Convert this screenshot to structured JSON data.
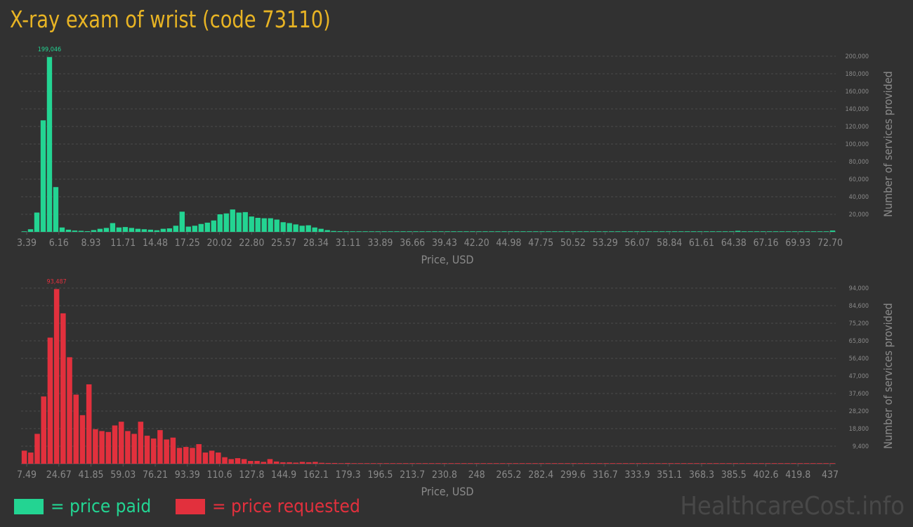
{
  "title": "X-ray exam of wrist (code 73110)",
  "watermark": "HealthcareCost.info",
  "colors": {
    "background": "#313131",
    "title": "#e8b424",
    "paid": "#23d492",
    "requested": "#e2303d",
    "axis_text": "#8a8a8a",
    "grid": "#4a4a4a"
  },
  "legend": {
    "paid": "= price paid",
    "requested": "= price requested"
  },
  "chart_data": [
    {
      "type": "bar",
      "series_key": "paid",
      "xlabel": "Price, USD",
      "ylabel": "Number of services provided",
      "ylim": [
        0,
        200000
      ],
      "y_ticks": [
        "20,000",
        "40,000",
        "60,000",
        "80,000",
        "100,000",
        "120,000",
        "140,000",
        "160,000",
        "180,000",
        "200,000"
      ],
      "x_ticks": [
        "3.39",
        "6.16",
        "8.93",
        "11.71",
        "14.48",
        "17.25",
        "20.02",
        "22.80",
        "25.57",
        "28.34",
        "31.11",
        "33.89",
        "36.66",
        "39.43",
        "42.20",
        "44.98",
        "47.75",
        "50.52",
        "53.29",
        "56.07",
        "58.84",
        "61.61",
        "64.38",
        "67.16",
        "69.93",
        "72.70"
      ],
      "peak_label": "199,046",
      "peak_index": 4,
      "values": [
        500,
        3000,
        22000,
        127000,
        199046,
        51000,
        5000,
        2500,
        1500,
        1200,
        800,
        2000,
        3500,
        4500,
        10000,
        5000,
        5500,
        4500,
        3500,
        3000,
        2500,
        1800,
        3500,
        4000,
        7000,
        23000,
        6000,
        7000,
        9000,
        10500,
        13000,
        20000,
        21000,
        25500,
        22000,
        22500,
        17500,
        16000,
        15500,
        15500,
        14000,
        11000,
        10000,
        8500,
        7000,
        7500,
        5000,
        3500,
        2000,
        1000,
        800,
        700,
        600,
        500,
        400,
        400,
        300,
        200,
        200,
        500,
        500,
        300,
        200,
        100,
        500,
        100,
        100,
        100,
        500,
        500,
        400,
        400,
        500,
        300,
        200,
        300,
        100,
        100,
        50,
        50,
        400,
        50,
        50,
        50,
        50,
        50,
        50,
        50,
        50,
        50,
        50,
        50,
        50,
        50,
        50,
        50,
        50,
        300,
        50,
        50,
        50,
        50,
        50,
        50,
        50,
        50,
        50,
        50,
        50,
        50,
        50,
        50,
        50,
        1200,
        50,
        50,
        50,
        50,
        50,
        50,
        50,
        50,
        50,
        50,
        50,
        50,
        50,
        50,
        1500
      ]
    },
    {
      "type": "bar",
      "series_key": "requested",
      "xlabel": "Price, USD",
      "ylabel": "Number of services provided",
      "ylim": [
        0,
        94000
      ],
      "y_ticks": [
        "9,400",
        "18,800",
        "28,200",
        "37,600",
        "47,000",
        "56,400",
        "65,800",
        "75,200",
        "84,600",
        "94,000"
      ],
      "x_ticks": [
        "7.49",
        "24.67",
        "41.85",
        "59.03",
        "76.21",
        "93.39",
        "110.6",
        "127.8",
        "144.9",
        "162.1",
        "179.3",
        "196.5",
        "213.7",
        "230.8",
        "248",
        "265.2",
        "282.4",
        "299.6",
        "316.7",
        "333.9",
        "351.1",
        "368.3",
        "385.5",
        "402.6",
        "419.8",
        "437"
      ],
      "peak_label": "93,487",
      "peak_index": 5,
      "values": [
        7000,
        6000,
        16000,
        36000,
        67500,
        93487,
        80500,
        57000,
        37000,
        26000,
        42500,
        18500,
        17500,
        17000,
        20500,
        22500,
        17500,
        16000,
        22500,
        15000,
        13500,
        18000,
        13000,
        14000,
        8500,
        9000,
        8500,
        10500,
        6000,
        7000,
        6000,
        3500,
        2500,
        3000,
        2500,
        1500,
        1500,
        1000,
        2500,
        1200,
        800,
        800,
        600,
        1000,
        800,
        1000,
        500,
        400,
        400,
        300,
        400,
        300,
        300,
        200,
        200,
        200,
        200,
        200,
        200,
        200,
        200,
        200,
        150,
        150,
        300,
        150,
        150,
        150,
        150,
        150,
        300,
        150,
        150,
        150,
        150,
        150,
        150,
        150,
        150,
        150,
        150,
        150,
        150,
        150,
        150,
        300,
        150,
        150,
        150,
        150,
        150,
        150,
        300,
        150,
        150,
        150,
        150,
        150,
        150,
        150,
        150,
        150,
        150,
        150,
        150,
        150,
        150,
        150,
        150,
        150,
        150,
        150,
        150,
        150,
        150,
        150,
        150,
        150,
        150,
        150,
        150,
        150,
        150,
        150,
        150,
        300
      ]
    }
  ]
}
